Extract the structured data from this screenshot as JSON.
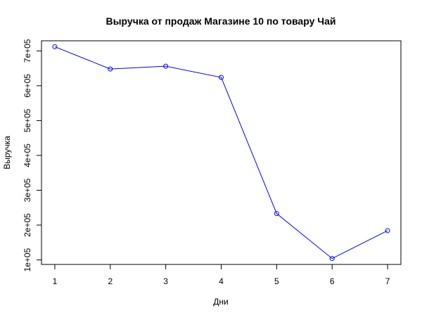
{
  "chart_data": {
    "type": "line",
    "title": "Выручка от продаж Магазине 10 по товару Чай",
    "xlabel": "Дни",
    "ylabel": "Выручка",
    "x": [
      1,
      2,
      3,
      4,
      5,
      6,
      7
    ],
    "series": [
      {
        "values": [
          712000,
          648000,
          656000,
          624000,
          233000,
          104000,
          184000
        ],
        "color": "#0000ff",
        "marker": "open-circle"
      }
    ],
    "xlim": [
      0.76,
      7.24
    ],
    "ylim": [
      87000,
      729000
    ],
    "x_ticks": [
      1,
      2,
      3,
      4,
      5,
      6,
      7
    ],
    "x_tick_labels": [
      "1",
      "2",
      "3",
      "4",
      "5",
      "6",
      "7"
    ],
    "y_ticks": [
      100000,
      200000,
      300000,
      400000,
      500000,
      600000,
      700000
    ],
    "y_tick_labels": [
      "1e+05",
      "2e+05",
      "3e+05",
      "4e+05",
      "5e+05",
      "6e+05",
      "7e+05"
    ],
    "grid": false,
    "legend": "none",
    "colors": {
      "series": "#0000ff",
      "axis": "#000000",
      "background": "#ffffff"
    }
  }
}
